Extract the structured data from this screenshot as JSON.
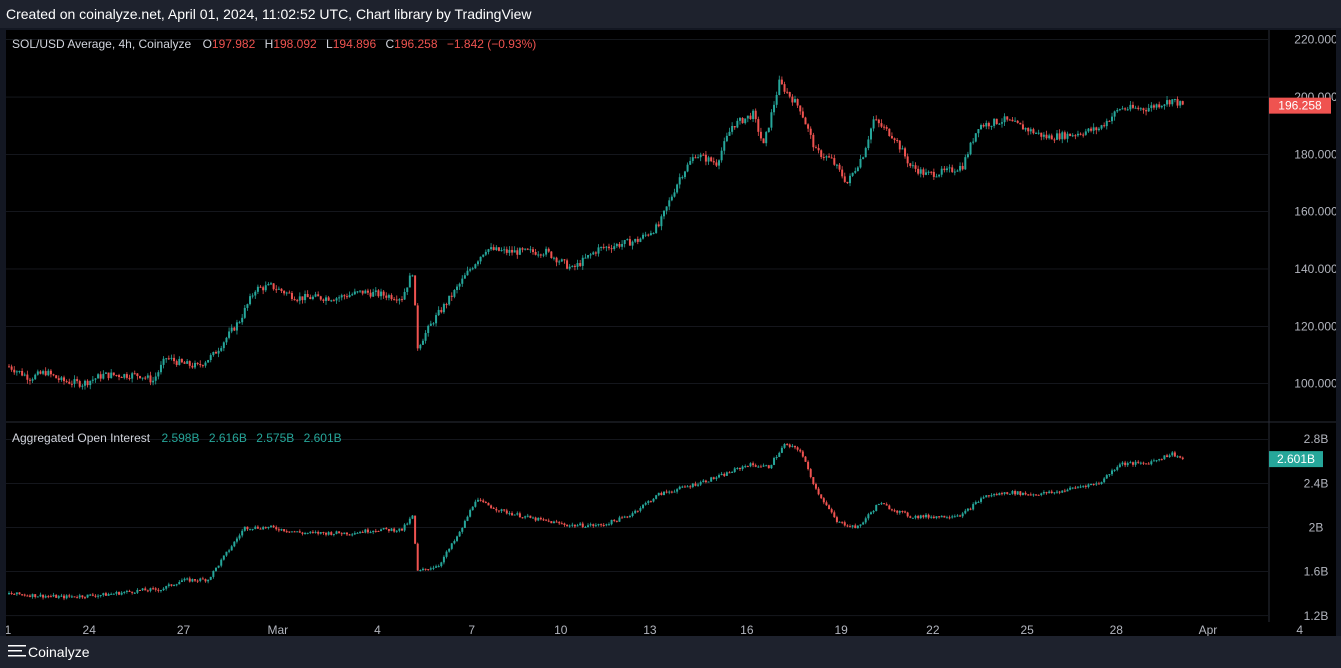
{
  "header": {
    "text": "Created on coinalyze.net, April 01, 2024, 11:02:52 UTC, Chart library by TradingView"
  },
  "footer": {
    "brand": "Coinalyze"
  },
  "colors": {
    "up": "#26a69a",
    "down": "#ef5350",
    "grid": "#2a2e39",
    "axis_text": "#b2b5be",
    "background": "#000000"
  },
  "chart_data": [
    {
      "type": "candlestick",
      "title": "SOL/USD Average, 4h, Coinalyze",
      "legend": {
        "o_label": "O",
        "o": "197.982",
        "h_label": "H",
        "h": "198.092",
        "l_label": "L",
        "l": "194.896",
        "c_label": "C",
        "c": "196.258",
        "change": "−1.842 (−0.93%)"
      },
      "last_price_label": "196.258",
      "ylim": [
        88,
        222
      ],
      "yticks": [
        "100.000",
        "120.000",
        "140.000",
        "160.000",
        "180.000",
        "200.000",
        "220.000"
      ],
      "ytick_values": [
        100,
        120,
        140,
        160,
        180,
        200,
        220
      ],
      "anchors": [
        [
          0,
          106
        ],
        [
          8,
          102
        ],
        [
          14,
          104
        ],
        [
          20,
          101
        ],
        [
          28,
          100
        ],
        [
          36,
          103
        ],
        [
          50,
          103
        ],
        [
          55,
          101
        ],
        [
          60,
          109
        ],
        [
          66,
          107
        ],
        [
          72,
          106
        ],
        [
          78,
          110
        ],
        [
          88,
          122
        ],
        [
          94,
          133
        ],
        [
          100,
          134
        ],
        [
          110,
          130
        ],
        [
          125,
          130
        ],
        [
          135,
          132
        ],
        [
          150,
          130
        ],
        [
          154,
          139
        ],
        [
          156,
          113
        ],
        [
          162,
          122
        ],
        [
          170,
          132
        ],
        [
          176,
          140
        ],
        [
          182,
          147
        ],
        [
          190,
          146
        ],
        [
          205,
          146
        ],
        [
          215,
          140
        ],
        [
          225,
          147
        ],
        [
          240,
          150
        ],
        [
          248,
          155
        ],
        [
          256,
          172
        ],
        [
          262,
          180
        ],
        [
          270,
          177
        ],
        [
          276,
          190
        ],
        [
          284,
          194
        ],
        [
          288,
          183
        ],
        [
          294,
          205
        ],
        [
          302,
          196
        ],
        [
          308,
          181
        ],
        [
          314,
          178
        ],
        [
          320,
          170
        ],
        [
          326,
          180
        ],
        [
          330,
          192
        ],
        [
          338,
          186
        ],
        [
          344,
          176
        ],
        [
          350,
          173
        ],
        [
          358,
          174
        ],
        [
          364,
          176
        ],
        [
          370,
          190
        ],
        [
          380,
          192
        ],
        [
          388,
          189
        ],
        [
          396,
          186
        ],
        [
          406,
          187
        ],
        [
          416,
          189
        ],
        [
          424,
          196
        ],
        [
          434,
          196
        ],
        [
          444,
          199
        ],
        [
          448,
          197
        ]
      ]
    },
    {
      "type": "candlestick",
      "title": "Aggregated Open Interest",
      "legend": {
        "o": "2.598B",
        "h": "2.616B",
        "l": "2.575B",
        "c": "2.601B"
      },
      "last_price_label": "2.601B",
      "ylim": [
        1.18,
        2.92
      ],
      "yticks": [
        "1.2B",
        "1.6B",
        "2B",
        "2.4B",
        "2.8B"
      ],
      "ytick_values": [
        1.2,
        1.6,
        2.0,
        2.4,
        2.8
      ],
      "anchors": [
        [
          0,
          1.4
        ],
        [
          20,
          1.37
        ],
        [
          36,
          1.39
        ],
        [
          50,
          1.43
        ],
        [
          58,
          1.44
        ],
        [
          66,
          1.52
        ],
        [
          76,
          1.53
        ],
        [
          84,
          1.8
        ],
        [
          90,
          2.0
        ],
        [
          100,
          2.0
        ],
        [
          112,
          1.95
        ],
        [
          130,
          1.95
        ],
        [
          140,
          1.98
        ],
        [
          150,
          1.98
        ],
        [
          154,
          2.1
        ],
        [
          156,
          1.6
        ],
        [
          164,
          1.66
        ],
        [
          172,
          1.95
        ],
        [
          178,
          2.25
        ],
        [
          188,
          2.15
        ],
        [
          200,
          2.08
        ],
        [
          214,
          2.02
        ],
        [
          226,
          2.02
        ],
        [
          236,
          2.1
        ],
        [
          248,
          2.3
        ],
        [
          260,
          2.38
        ],
        [
          272,
          2.47
        ],
        [
          282,
          2.57
        ],
        [
          290,
          2.55
        ],
        [
          296,
          2.75
        ],
        [
          302,
          2.7
        ],
        [
          308,
          2.35
        ],
        [
          316,
          2.05
        ],
        [
          324,
          2.0
        ],
        [
          332,
          2.22
        ],
        [
          344,
          2.1
        ],
        [
          356,
          2.1
        ],
        [
          364,
          2.12
        ],
        [
          372,
          2.28
        ],
        [
          382,
          2.32
        ],
        [
          390,
          2.3
        ],
        [
          400,
          2.32
        ],
        [
          410,
          2.38
        ],
        [
          416,
          2.4
        ],
        [
          424,
          2.58
        ],
        [
          434,
          2.58
        ],
        [
          444,
          2.67
        ],
        [
          448,
          2.62
        ]
      ]
    }
  ],
  "xaxis": {
    "ticks": [
      "1",
      "24",
      "27",
      "Mar",
      "4",
      "7",
      "10",
      "13",
      "16",
      "19",
      "22",
      "25",
      "28",
      "Apr",
      "4"
    ],
    "tick_index": [
      0,
      31,
      67,
      103,
      141,
      177,
      211,
      245,
      282,
      318,
      353,
      389,
      423,
      458,
      493
    ]
  }
}
